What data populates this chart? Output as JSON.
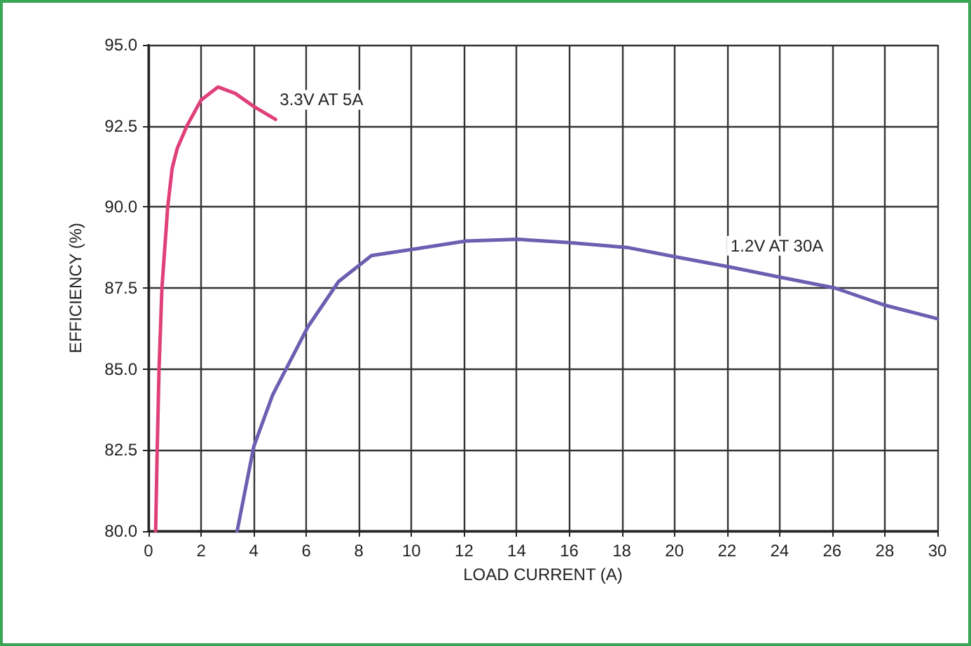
{
  "chart_data": {
    "type": "line",
    "xlabel": "LOAD CURRENT (A)",
    "ylabel": "EFFICIENCY (%)",
    "xlim": [
      0,
      30
    ],
    "xticks": [
      0,
      2,
      4,
      6,
      8,
      10,
      12,
      14,
      16,
      18,
      20,
      22,
      24,
      26,
      28,
      30
    ],
    "ylim": [
      80,
      95
    ],
    "yticks": [
      {
        "value": 80,
        "label": "80.0"
      },
      {
        "value": 82.5,
        "label": "82.5"
      },
      {
        "value": 85,
        "label": "85.0"
      },
      {
        "value": 87.5,
        "label": "87.5"
      },
      {
        "value": 90,
        "label": "90.0"
      },
      {
        "value": 92.5,
        "label": "92.5"
      },
      {
        "value": 95,
        "label": "95.0"
      }
    ],
    "grid": true,
    "marker": "none",
    "line_style": "solid",
    "series": [
      {
        "name": "3.3V AT 5A",
        "color": "#e0407a",
        "x": [
          0.27,
          0.33,
          0.4,
          0.51,
          0.73,
          0.9,
          1.09,
          1.46,
          2.0,
          2.64,
          3.3,
          4.0,
          4.83
        ],
        "values": [
          80,
          82.5,
          85,
          87.5,
          90,
          91.2,
          91.8,
          92.5,
          93.3,
          93.7,
          93.5,
          93.1,
          92.7
        ]
      },
      {
        "name": "1.2V AT 30A",
        "color": "#6a5fb0",
        "x": [
          3.37,
          4,
          4.72,
          6.06,
          7.23,
          8.48,
          10.1,
          12.07,
          14.05,
          16,
          18.2,
          20.1,
          22.1,
          23.9,
          26.1,
          28,
          30
        ],
        "values": [
          80,
          82.6,
          84.2,
          86.3,
          87.7,
          88.5,
          88.7,
          88.95,
          89,
          88.9,
          88.75,
          88.45,
          88.15,
          87.85,
          87.5,
          86.97,
          86.55
        ]
      }
    ]
  }
}
